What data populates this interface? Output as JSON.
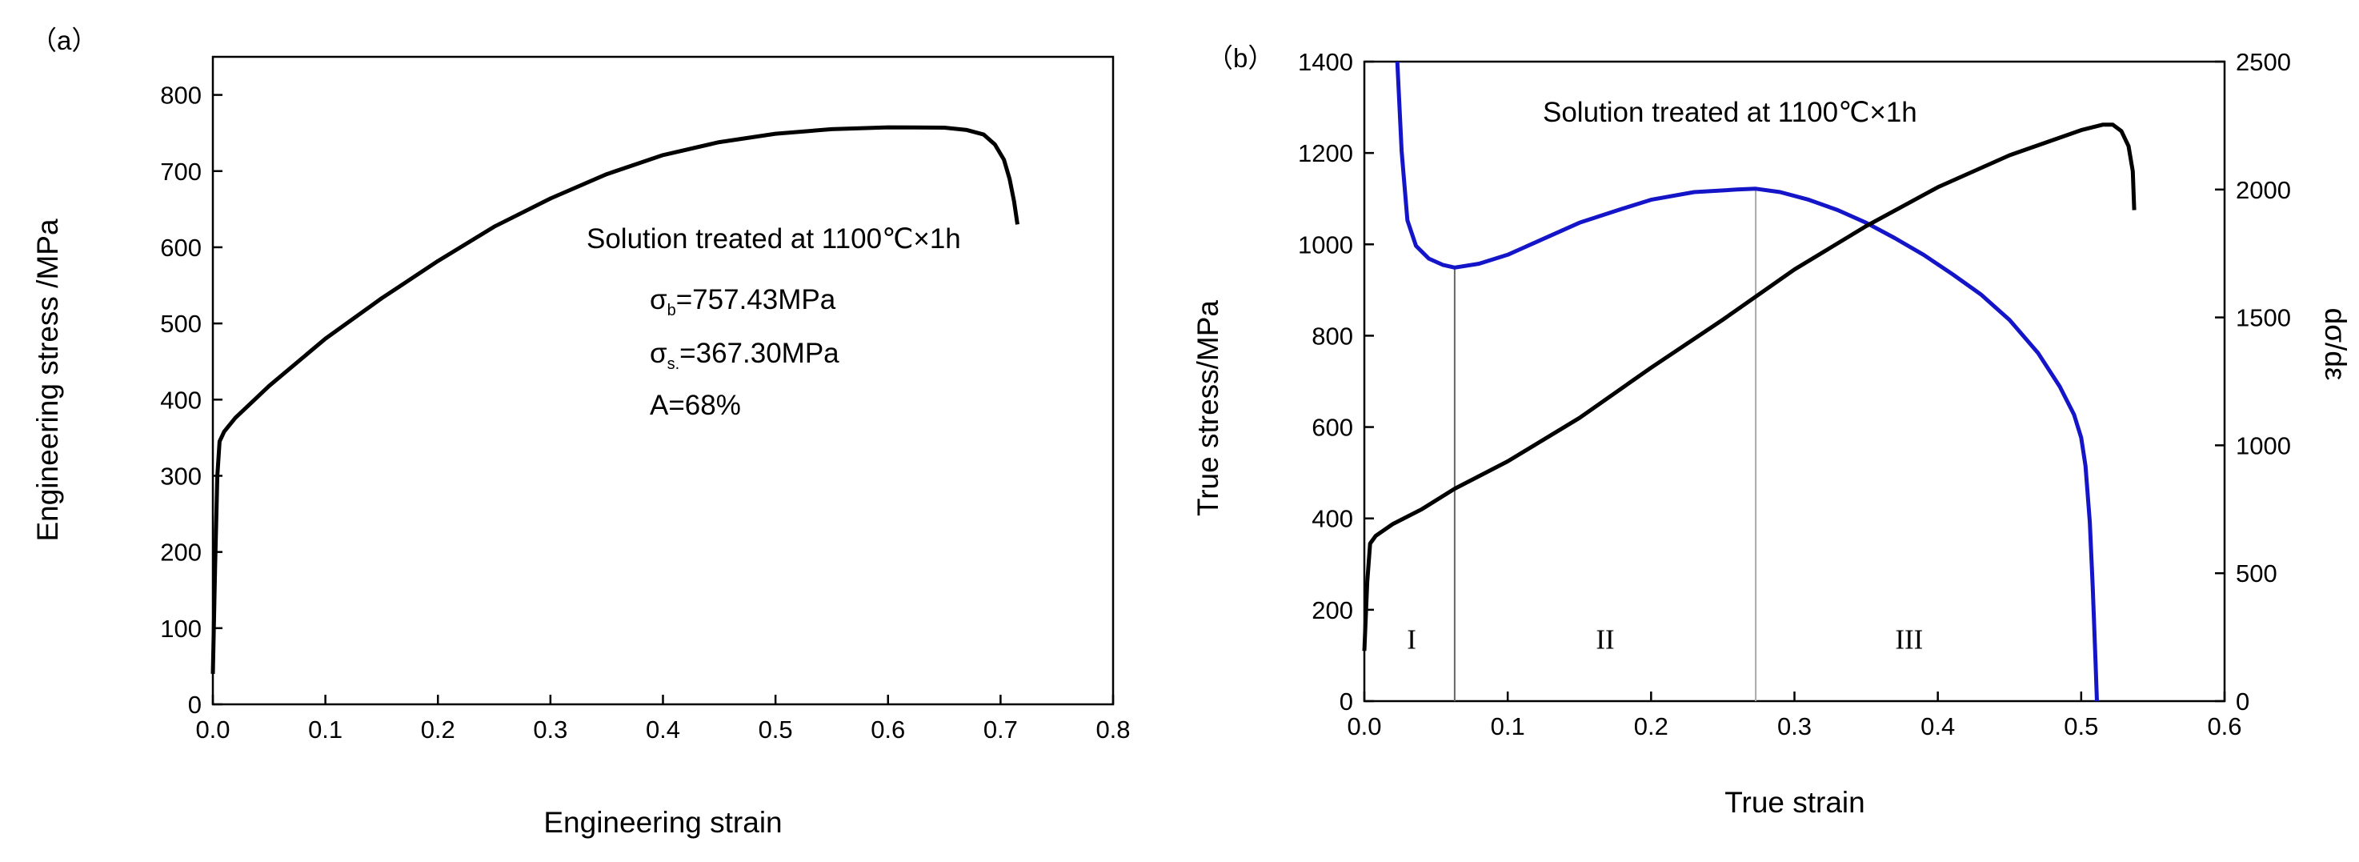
{
  "chart_data": [
    {
      "panel_label": "（a）",
      "type": "line",
      "title": "",
      "xlabel": "Engineering strain",
      "ylabel": "Engineering stress /MPa",
      "xlim": [
        0.0,
        0.8
      ],
      "ylim": [
        0,
        850
      ],
      "xticks": [
        "0.0",
        "0.1",
        "0.2",
        "0.3",
        "0.4",
        "0.5",
        "0.6",
        "0.7",
        "0.8"
      ],
      "yticks": [
        "0",
        "100",
        "200",
        "300",
        "400",
        "500",
        "600",
        "700",
        "800"
      ],
      "grid": false,
      "series": [
        {
          "name": "Engineering stress-strain",
          "color": "#000000",
          "points": [
            [
              0.0,
              40
            ],
            [
              0.002,
              180
            ],
            [
              0.004,
              300
            ],
            [
              0.006,
              345
            ],
            [
              0.01,
              358
            ],
            [
              0.02,
              376
            ],
            [
              0.05,
              418
            ],
            [
              0.1,
              480
            ],
            [
              0.15,
              533
            ],
            [
              0.2,
              582
            ],
            [
              0.25,
              627
            ],
            [
              0.3,
              664
            ],
            [
              0.35,
              696
            ],
            [
              0.4,
              721
            ],
            [
              0.45,
              738
            ],
            [
              0.5,
              749
            ],
            [
              0.55,
              755
            ],
            [
              0.6,
              757.43
            ],
            [
              0.65,
              757
            ],
            [
              0.67,
              754
            ],
            [
              0.685,
              748
            ],
            [
              0.695,
              735
            ],
            [
              0.703,
              715
            ],
            [
              0.708,
              690
            ],
            [
              0.712,
              660
            ],
            [
              0.715,
              630
            ]
          ]
        }
      ],
      "annotations": {
        "heading": "Solution treated at 1100℃×1h",
        "ub_sym": "σ",
        "ub_sub": "b",
        "ub_val": "=757.43MPa",
        "ys_sym": "σ",
        "ys_sub": "s.",
        "ys_val": "=367.30MPa",
        "elong": "A=68%"
      }
    },
    {
      "panel_label": "（b）",
      "type": "line",
      "title": "",
      "xlabel": "True strain",
      "ylabel": "True stress/MPa",
      "y2label": "dσ/dε",
      "xlim": [
        0.0,
        0.6
      ],
      "ylim": [
        0,
        1400
      ],
      "y2lim": [
        0,
        2500
      ],
      "xticks": [
        "0.0",
        "0.1",
        "0.2",
        "0.3",
        "0.4",
        "0.5",
        "0.6"
      ],
      "yticks": [
        "0",
        "200",
        "400",
        "600",
        "800",
        "1000",
        "1200",
        "1400"
      ],
      "y2ticks": [
        "0",
        "500",
        "1000",
        "1500",
        "2000",
        "2500"
      ],
      "grid": false,
      "annotation": "Solution treated at 1100℃×1h",
      "regions": [
        "I",
        "II",
        "III"
      ],
      "region_boundaries": [
        0.063,
        0.273
      ],
      "series": [
        {
          "name": "True stress",
          "axis": "left",
          "color": "#000000",
          "points": [
            [
              0.0,
              110
            ],
            [
              0.002,
              260
            ],
            [
              0.004,
              345
            ],
            [
              0.008,
              362
            ],
            [
              0.02,
              388
            ],
            [
              0.04,
              420
            ],
            [
              0.063,
              465
            ],
            [
              0.1,
              525
            ],
            [
              0.15,
              620
            ],
            [
              0.2,
              730
            ],
            [
              0.25,
              835
            ],
            [
              0.3,
              945
            ],
            [
              0.35,
              1040
            ],
            [
              0.4,
              1125
            ],
            [
              0.45,
              1195
            ],
            [
              0.5,
              1250
            ],
            [
              0.515,
              1262
            ],
            [
              0.522,
              1262
            ],
            [
              0.528,
              1248
            ],
            [
              0.533,
              1215
            ],
            [
              0.536,
              1160
            ],
            [
              0.537,
              1075
            ]
          ]
        },
        {
          "name": "dσ/dε",
          "axis": "right",
          "color": "#1414c8",
          "points": [
            [
              0.023,
              2500
            ],
            [
              0.026,
              2150
            ],
            [
              0.03,
              1880
            ],
            [
              0.036,
              1780
            ],
            [
              0.045,
              1730
            ],
            [
              0.055,
              1705
            ],
            [
              0.063,
              1695
            ],
            [
              0.08,
              1710
            ],
            [
              0.1,
              1745
            ],
            [
              0.13,
              1820
            ],
            [
              0.15,
              1870
            ],
            [
              0.18,
              1925
            ],
            [
              0.2,
              1960
            ],
            [
              0.23,
              1990
            ],
            [
              0.26,
              2000
            ],
            [
              0.273,
              2003
            ],
            [
              0.29,
              1990
            ],
            [
              0.31,
              1960
            ],
            [
              0.33,
              1920
            ],
            [
              0.35,
              1870
            ],
            [
              0.37,
              1810
            ],
            [
              0.39,
              1745
            ],
            [
              0.41,
              1670
            ],
            [
              0.43,
              1590
            ],
            [
              0.45,
              1490
            ],
            [
              0.47,
              1360
            ],
            [
              0.485,
              1230
            ],
            [
              0.495,
              1120
            ],
            [
              0.5,
              1030
            ],
            [
              0.503,
              920
            ],
            [
              0.506,
              700
            ],
            [
              0.508,
              450
            ],
            [
              0.51,
              150
            ],
            [
              0.511,
              0
            ]
          ]
        }
      ]
    }
  ]
}
